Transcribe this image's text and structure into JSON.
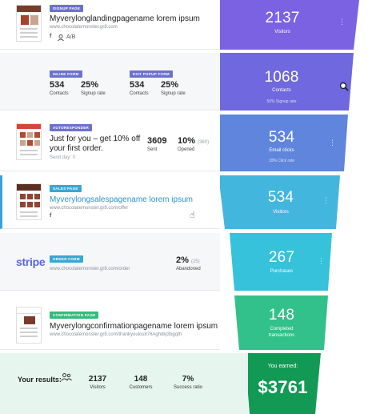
{
  "steps": [
    {
      "tag": "Signup page",
      "title": "Myverylonglandingpagename lorem ipsum",
      "url": "www.chocolatemonster.gr8.com",
      "ab": "A/B",
      "funnel_value": "2137",
      "funnel_label": "Visitors"
    },
    {
      "forms": [
        {
          "tag": "Inline form",
          "contacts_value": "534",
          "contacts_label": "Contacts",
          "rate_value": "25%",
          "rate_label": "Signup rate"
        },
        {
          "tag": "Exit popup form",
          "contacts_value": "534",
          "contacts_label": "Contacts",
          "rate_value": "25%",
          "rate_label": "Signup rate"
        }
      ],
      "funnel_value": "1068",
      "funnel_label": "Contacts",
      "funnel_note": "50% Signup rate"
    },
    {
      "tag": "Autoresponder",
      "title_line1": "Just for you – get 10% off",
      "title_line2": "your first order.",
      "send_day": "Send day: 0",
      "sent_value": "3609",
      "sent_label": "Sent",
      "opened_value": "10%",
      "opened_sub": "(360)",
      "opened_label": "Opened",
      "funnel_value": "534",
      "funnel_label": "Email clicks",
      "funnel_note": "10% Click rate"
    },
    {
      "tag": "Sales page",
      "title": "Myverylongsalespagename lorem ipsum",
      "url": "www.chocolatemonster.gr8.com/offer",
      "funnel_value": "534",
      "funnel_label": "Visitors"
    },
    {
      "tag": "Order form",
      "logo_text": "stripe",
      "url": "www.chocolatemonster.gr8.com/order",
      "abandoned_value": "2%",
      "abandoned_sub": "(25)",
      "abandoned_label": "Abandoned",
      "funnel_value": "267",
      "funnel_label": "Purchases"
    },
    {
      "tag": "Confirmation page",
      "title": "Myverylongconfirmationpagename lorem ipsum",
      "url": "www.chocolatemonster.gr8.com/thankyoulos876Aghdkj3bgqth",
      "funnel_value": "148",
      "funnel_label_line1": "Completed",
      "funnel_label_line2": "transactions"
    }
  ],
  "results": {
    "label": "Your results:",
    "visitors_value": "2137",
    "visitors_label": "Visitors",
    "customers_value": "148",
    "customers_label": "Customers",
    "success_value": "7%",
    "success_label": "Success ratio",
    "earned_label": "You earned:",
    "earned_value": "$3761"
  },
  "icons": {
    "facebook": "f",
    "menu": "⋮",
    "people": "people-icon",
    "hand": "☝"
  },
  "colors": {
    "funnel_1": "#7b62e3",
    "funnel_2": "#6f68de",
    "funnel_3": "#5f86dc",
    "funnel_4": "#43b6de",
    "funnel_5": "#35c2da",
    "funnel_6": "#32c18a",
    "funnel_7": "#129a55",
    "link": "#2a93cf"
  }
}
